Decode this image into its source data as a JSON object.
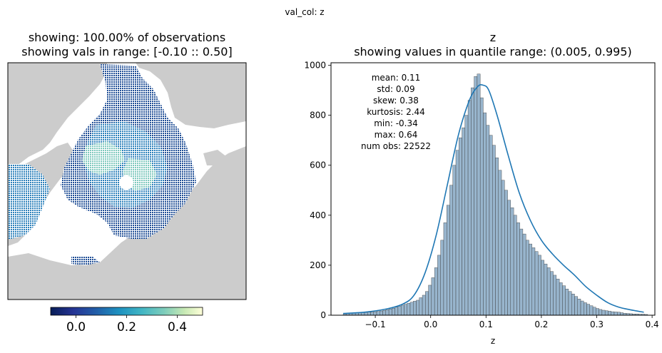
{
  "suptitle": "val_col: z",
  "map_panel": {
    "title_line1": "showing: 100.00% of observations",
    "title_line2": "showing vals in range: [-0.10 :: 0.50]",
    "colorbar": {
      "colormap": "YlGnBu_r",
      "range": [
        -0.1,
        0.5
      ],
      "ticks": [
        "0.0",
        "0.2",
        "0.4"
      ],
      "tick_values": [
        0.0,
        0.2,
        0.4
      ]
    },
    "land_color": "#cccccc",
    "ocean_color": "#ffffff"
  },
  "chart_data": {
    "type": "bar",
    "title_line1": "z",
    "title_line2": "showing values in quantile range: (0.005, 0.995)",
    "xlabel": "z",
    "ylabel": "",
    "xlim": [
      -0.18,
      0.405
    ],
    "ylim": [
      0,
      1010
    ],
    "xticks": [
      -0.1,
      0.0,
      0.1,
      0.2,
      0.3,
      0.4
    ],
    "xtick_labels": [
      "−0.1",
      "0.0",
      "0.1",
      "0.2",
      "0.3",
      "0.4"
    ],
    "yticks": [
      0,
      200,
      400,
      600,
      800,
      1000
    ],
    "ytick_labels": [
      "0",
      "200",
      "400",
      "600",
      "800",
      "1000"
    ],
    "bar_color": "#86a8c4",
    "line_color": "#1f77b4",
    "stats": [
      "mean: 0.11",
      "std: 0.09",
      "skew: 0.38",
      "kurtosis: 2.44",
      "min: -0.34",
      "max: 0.64",
      "num obs: 22522"
    ],
    "bin_edges_start": -0.158,
    "bin_width": 0.0055,
    "values": [
      5,
      7,
      8,
      9,
      10,
      10,
      11,
      11,
      12,
      12,
      14,
      15,
      17,
      19,
      22,
      25,
      28,
      32,
      36,
      40,
      44,
      48,
      52,
      56,
      60,
      70,
      80,
      95,
      120,
      150,
      190,
      240,
      300,
      370,
      440,
      520,
      600,
      660,
      710,
      750,
      800,
      860,
      910,
      955,
      965,
      870,
      810,
      760,
      720,
      680,
      630,
      580,
      540,
      500,
      460,
      430,
      400,
      370,
      345,
      325,
      300,
      285,
      270,
      255,
      240,
      220,
      205,
      190,
      175,
      160,
      145,
      130,
      118,
      105,
      95,
      85,
      75,
      65,
      57,
      50,
      44,
      38,
      32,
      27,
      23,
      20,
      18,
      16,
      14,
      13,
      12,
      10,
      8,
      7,
      6,
      5,
      5,
      4,
      4,
      3
    ],
    "kde": [
      [
        -0.158,
        7
      ],
      [
        -0.12,
        12
      ],
      [
        -0.08,
        25
      ],
      [
        -0.05,
        45
      ],
      [
        -0.03,
        80
      ],
      [
        -0.01,
        170
      ],
      [
        0.01,
        320
      ],
      [
        0.03,
        520
      ],
      [
        0.05,
        720
      ],
      [
        0.07,
        860
      ],
      [
        0.085,
        915
      ],
      [
        0.095,
        920
      ],
      [
        0.105,
        900
      ],
      [
        0.12,
        800
      ],
      [
        0.14,
        640
      ],
      [
        0.16,
        490
      ],
      [
        0.18,
        380
      ],
      [
        0.2,
        300
      ],
      [
        0.22,
        245
      ],
      [
        0.24,
        200
      ],
      [
        0.26,
        160
      ],
      [
        0.28,
        115
      ],
      [
        0.3,
        80
      ],
      [
        0.32,
        50
      ],
      [
        0.34,
        32
      ],
      [
        0.36,
        22
      ],
      [
        0.385,
        12
      ]
    ]
  }
}
